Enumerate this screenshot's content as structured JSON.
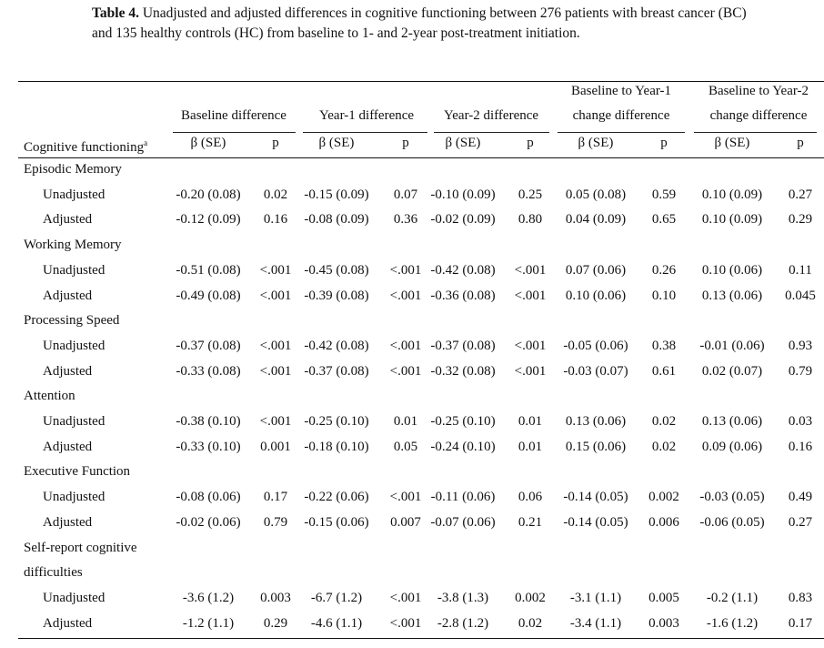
{
  "caption": {
    "label": "Table 4.",
    "text": "Unadjusted and adjusted differences in cognitive functioning between 276 patients with breast cancer (BC) and 135 healthy controls (HC) from baseline to 1- and 2-year post-treatment initiation."
  },
  "header": {
    "groups": [
      {
        "line1": "",
        "line2": "Baseline difference"
      },
      {
        "line1": "",
        "line2": "Year-1 difference"
      },
      {
        "line1": "",
        "line2": "Year-2 difference"
      },
      {
        "line1": "Baseline to Year-1",
        "line2": "change difference"
      },
      {
        "line1": "Baseline to Year-2",
        "line2": "change difference"
      }
    ],
    "row_label": "Cognitive functioning",
    "row_label_sup": "a",
    "beta": "β (SE)",
    "p": "p"
  },
  "domains": [
    {
      "name": "Episodic Memory",
      "name2": "",
      "rows": [
        {
          "label": "Unadjusted",
          "cells": [
            "-0.20 (0.08)",
            "0.02",
            "-0.15 (0.09)",
            "0.07",
            "-0.10 (0.09)",
            "0.25",
            "0.05 (0.08)",
            "0.59",
            "0.10 (0.09)",
            "0.27"
          ]
        },
        {
          "label": "Adjusted",
          "cells": [
            "-0.12 (0.09)",
            "0.16",
            "-0.08 (0.09)",
            "0.36",
            "-0.02 (0.09)",
            "0.80",
            "0.04 (0.09)",
            "0.65",
            "0.10 (0.09)",
            "0.29"
          ]
        }
      ]
    },
    {
      "name": "Working Memory",
      "name2": "",
      "rows": [
        {
          "label": "Unadjusted",
          "cells": [
            "-0.51 (0.08)",
            "<.001",
            "-0.45 (0.08)",
            "<.001",
            "-0.42 (0.08)",
            "<.001",
            "0.07 (0.06)",
            "0.26",
            "0.10 (0.06)",
            "0.11"
          ]
        },
        {
          "label": "Adjusted",
          "cells": [
            "-0.49 (0.08)",
            "<.001",
            "-0.39 (0.08)",
            "<.001",
            "-0.36 (0.08)",
            "<.001",
            "0.10 (0.06)",
            "0.10",
            "0.13 (0.06)",
            "0.045"
          ]
        }
      ]
    },
    {
      "name": "Processing Speed",
      "name2": "",
      "rows": [
        {
          "label": "Unadjusted",
          "cells": [
            "-0.37 (0.08)",
            "<.001",
            "-0.42 (0.08)",
            "<.001",
            "-0.37 (0.08)",
            "<.001",
            "-0.05 (0.06)",
            "0.38",
            "-0.01 (0.06)",
            "0.93"
          ]
        },
        {
          "label": "Adjusted",
          "cells": [
            "-0.33 (0.08)",
            "<.001",
            "-0.37 (0.08)",
            "<.001",
            "-0.32 (0.08)",
            "<.001",
            "-0.03 (0.07)",
            "0.61",
            "0.02 (0.07)",
            "0.79"
          ]
        }
      ]
    },
    {
      "name": "Attention",
      "name2": "",
      "rows": [
        {
          "label": "Unadjusted",
          "cells": [
            "-0.38 (0.10)",
            "<.001",
            "-0.25 (0.10)",
            "0.01",
            "-0.25 (0.10)",
            "0.01",
            "0.13 (0.06)",
            "0.02",
            "0.13 (0.06)",
            "0.03"
          ]
        },
        {
          "label": "Adjusted",
          "cells": [
            "-0.33 (0.10)",
            "0.001",
            "-0.18 (0.10)",
            "0.05",
            "-0.24 (0.10)",
            "0.01",
            "0.15 (0.06)",
            "0.02",
            "0.09 (0.06)",
            "0.16"
          ]
        }
      ]
    },
    {
      "name": "Executive Function",
      "name2": "",
      "rows": [
        {
          "label": "Unadjusted",
          "cells": [
            "-0.08 (0.06)",
            "0.17",
            "-0.22 (0.06)",
            "<.001",
            "-0.11 (0.06)",
            "0.06",
            "-0.14 (0.05)",
            "0.002",
            "-0.03 (0.05)",
            "0.49"
          ]
        },
        {
          "label": "Adjusted",
          "cells": [
            "-0.02 (0.06)",
            "0.79",
            "-0.15 (0.06)",
            "0.007",
            "-0.07 (0.06)",
            "0.21",
            "-0.14 (0.05)",
            "0.006",
            "-0.06 (0.05)",
            "0.27"
          ]
        }
      ]
    },
    {
      "name": "Self-report cognitive",
      "name2": "difficulties",
      "rows": [
        {
          "label": "Unadjusted",
          "cells": [
            "-3.6 (1.2)",
            "0.003",
            "-6.7 (1.2)",
            "<.001",
            "-3.8 (1.3)",
            "0.002",
            "-3.1 (1.1)",
            "0.005",
            "-0.2 (1.1)",
            "0.83"
          ]
        },
        {
          "label": "Adjusted",
          "cells": [
            "-1.2 (1.1)",
            "0.29",
            "-4.6 (1.1)",
            "<.001",
            "-2.8 (1.2)",
            "0.02",
            "-3.4 (1.1)",
            "0.003",
            "-1.6 (1.2)",
            "0.17"
          ]
        }
      ]
    }
  ]
}
